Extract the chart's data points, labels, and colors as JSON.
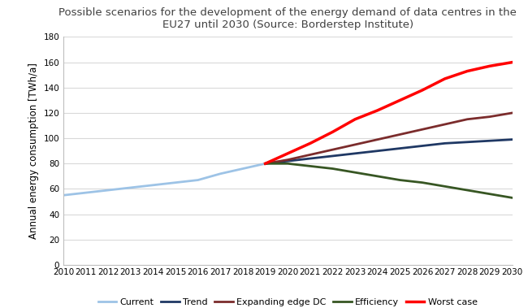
{
  "title": "Possible scenarios for the development of the energy demand of data centres in the\nEU27 until 2030 (Source: Borderstep Institute)",
  "ylabel": "Annual energy consumption [TWh/a]",
  "xlabel": "",
  "ylim": [
    0,
    180
  ],
  "yticks": [
    0,
    20,
    40,
    60,
    80,
    100,
    120,
    140,
    160,
    180
  ],
  "xlim": [
    2010,
    2030
  ],
  "xticks": [
    2010,
    2011,
    2012,
    2013,
    2014,
    2015,
    2016,
    2017,
    2018,
    2019,
    2020,
    2021,
    2022,
    2023,
    2024,
    2025,
    2026,
    2027,
    2028,
    2029,
    2030
  ],
  "series": {
    "Current": {
      "x": [
        2010,
        2011,
        2012,
        2013,
        2014,
        2015,
        2016,
        2017,
        2018,
        2019
      ],
      "y": [
        55,
        57,
        59,
        61,
        63,
        65,
        67,
        72,
        76,
        80
      ],
      "color": "#9dc3e6",
      "linewidth": 2.0
    },
    "Trend": {
      "x": [
        2019,
        2020,
        2021,
        2022,
        2023,
        2024,
        2025,
        2026,
        2027,
        2028,
        2029,
        2030
      ],
      "y": [
        80,
        82,
        84,
        86,
        88,
        90,
        92,
        94,
        96,
        97,
        98,
        99
      ],
      "color": "#1f3864",
      "linewidth": 2.0
    },
    "Expanding edge DC": {
      "x": [
        2019,
        2020,
        2021,
        2022,
        2023,
        2024,
        2025,
        2026,
        2027,
        2028,
        2029,
        2030
      ],
      "y": [
        80,
        83,
        87,
        91,
        95,
        99,
        103,
        107,
        111,
        115,
        117,
        120
      ],
      "color": "#7b2c2c",
      "linewidth": 2.0
    },
    "Efficiency": {
      "x": [
        2019,
        2020,
        2021,
        2022,
        2023,
        2024,
        2025,
        2026,
        2027,
        2028,
        2029,
        2030
      ],
      "y": [
        80,
        80,
        78,
        76,
        73,
        70,
        67,
        65,
        62,
        59,
        56,
        53
      ],
      "color": "#375623",
      "linewidth": 2.0
    },
    "Worst case": {
      "x": [
        2019,
        2020,
        2021,
        2022,
        2023,
        2024,
        2025,
        2026,
        2027,
        2028,
        2029,
        2030
      ],
      "y": [
        80,
        88,
        96,
        105,
        115,
        122,
        130,
        138,
        147,
        153,
        157,
        160
      ],
      "color": "#ff0000",
      "linewidth": 2.5
    }
  },
  "title_fontsize": 9.5,
  "tick_fontsize": 7.5,
  "label_fontsize": 8.5,
  "legend_fontsize": 8,
  "background_color": "#ffffff",
  "grid_color": "#d9d9d9",
  "spine_color": "#bfbfbf",
  "title_color": "#404040"
}
